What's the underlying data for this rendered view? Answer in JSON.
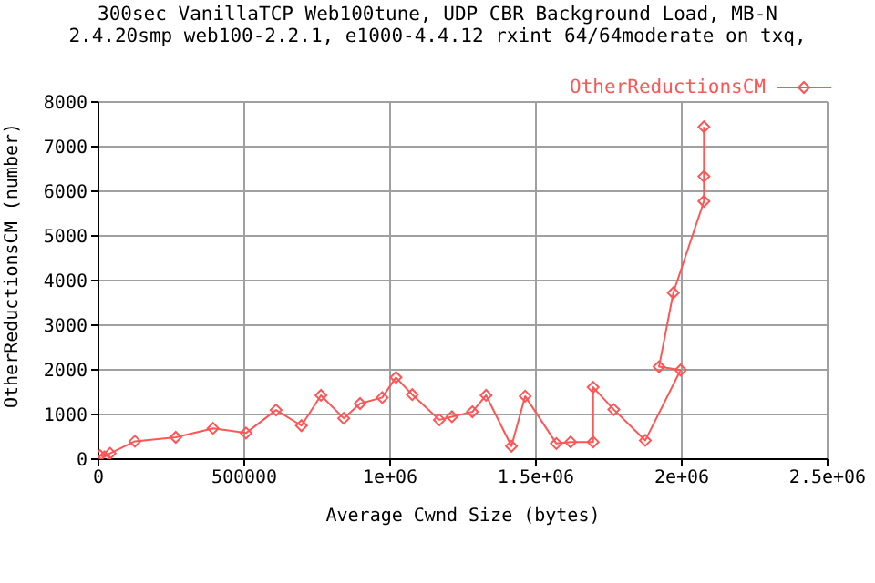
{
  "chart_data": {
    "type": "line",
    "title": "300sec VanillaTCP Web100tune, UDP CBR Background Load, MB-N",
    "subtitle": "2.4.20smp web100-2.2.1, e1000-4.4.12 rxint 64/64moderate on txq,",
    "xlabel": "Average Cwnd Size (bytes)",
    "ylabel": "OtherReductionsCM (number)",
    "x": [
      5000,
      20000,
      40000,
      125000,
      265000,
      393000,
      506000,
      609000,
      696000,
      763000,
      841000,
      897000,
      973000,
      1020000,
      1076000,
      1169000,
      1212000,
      1282000,
      1329000,
      1416000,
      1463000,
      1570000,
      1619000,
      1696000,
      1696000,
      1767000,
      1875000,
      1996000,
      1922000,
      1971000,
      2076000,
      2076000,
      2076000
    ],
    "series": [
      {
        "name": "OtherReductionsCM",
        "color": "#ff5555",
        "values": [
          80,
          50,
          130,
          400,
          490,
          690,
          585,
          1100,
          750,
          1430,
          915,
          1245,
          1380,
          1830,
          1445,
          880,
          950,
          1060,
          1430,
          290,
          1410,
          350,
          385,
          385,
          1610,
          1110,
          420,
          1995,
          2070,
          3725,
          5775,
          6335,
          7445
        ]
      }
    ],
    "xlim": [
      0,
      2500000
    ],
    "xticks": [
      0,
      500000,
      {
        "value": 1000000,
        "label": "1e+06"
      },
      {
        "value": 1500000,
        "label": "1.5e+06"
      },
      {
        "value": 2000000,
        "label": "2e+06"
      },
      {
        "value": 2500000,
        "label": "2.5e+06"
      }
    ],
    "ylim": [
      0,
      8000
    ],
    "yticks": [
      0,
      1000,
      2000,
      3000,
      4000,
      5000,
      6000,
      7000,
      8000
    ],
    "grid": true,
    "legend": "top right",
    "marker": "diamond",
    "line_style": "solid"
  }
}
